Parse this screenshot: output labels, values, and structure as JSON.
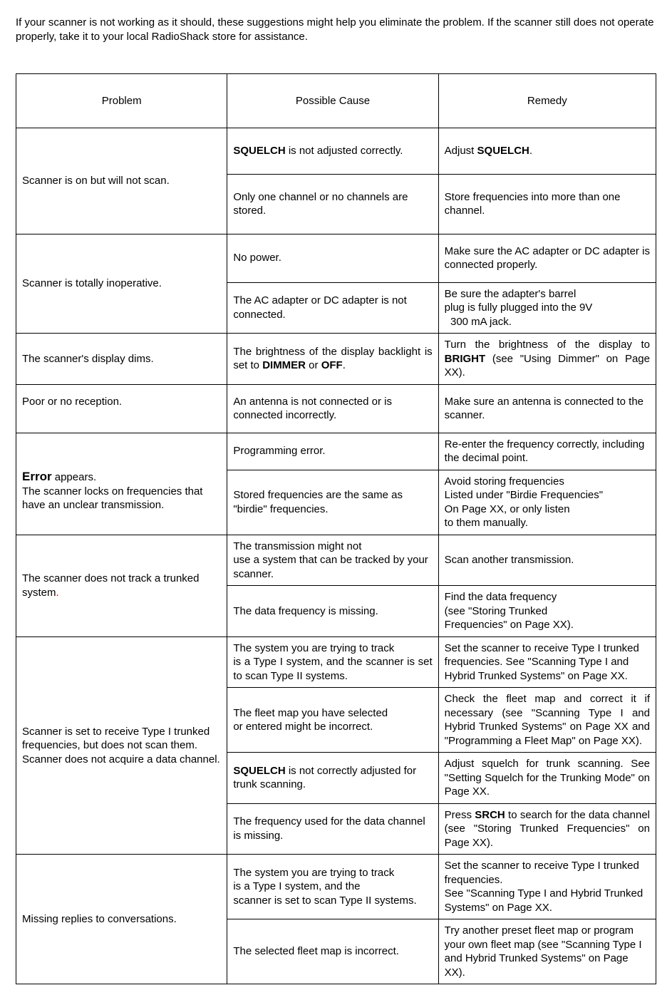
{
  "intro": "If your scanner is not working as it should, these suggestions might help you eliminate the problem. If the scanner still does not operate properly, take it to your local RadioShack store for assistance.",
  "headers": {
    "c1": "Problem",
    "c2": "Possible Cause",
    "c3": "Remedy"
  },
  "r1": {
    "problem": "Scanner is on but will not scan.",
    "a_cause_pre": "",
    "a_cause_b": "SQUELCH",
    "a_cause_post": " is not adjusted correctly.",
    "a_rem_pre": "Adjust ",
    "a_rem_b": "SQUELCH",
    "a_rem_post": ".",
    "b_cause": "Only one channel or no channels are stored.",
    "b_rem": "Store frequencies into more than one channel."
  },
  "r2": {
    "problem": "Scanner is totally inoperative.",
    "a_cause": "No power.",
    "a_rem": "Make sure the AC adapter or DC adapter is connected properly.",
    "b_cause": "The AC adapter or DC adapter is not connected.",
    "b_rem": "Be sure the adapter's barrel\nplug is fully plugged into the 9V\n  300 mA jack."
  },
  "r3": {
    "problem": "The scanner's display dims.",
    "cause_pre": "The brightness of the display backlight is set to ",
    "cause_b1": "DIMMER",
    "cause_mid": " or ",
    "cause_b2": "OFF",
    "cause_post": ".",
    "rem_pre": "Turn the brightness of the display to ",
    "rem_b": "BRIGHT",
    "rem_post": " (see \"Using Dimmer\" on Page XX)."
  },
  "r4": {
    "problem": "Poor or no reception.",
    "cause": "An antenna is not connected or is connected incorrectly.",
    "rem": "Make sure an antenna is connected to the scanner."
  },
  "r5": {
    "problem_b": "Error",
    "problem_post": " appears.\nThe scanner locks on frequencies that have an unclear transmission.",
    "a_cause": "Programming error.",
    "a_rem": "Re-enter the frequency correctly, including the decimal point.",
    "b_cause": "Stored frequencies are the same as \"birdie\" frequencies.",
    "b_rem": "Avoid storing frequencies\nListed under \"Birdie Frequencies\"\nOn Page XX, or only listen\nto them manually."
  },
  "r6": {
    "problem_pre": "The scanner does not track a trunked system",
    "problem_dot": ".",
    "a_cause": "The transmission might not\nuse a system that can be tracked by your scanner.",
    "a_rem": "Scan another transmission.",
    "b_cause": "The data frequency is missing.",
    "b_rem": "Find the data frequency\n(see \"Storing Trunked\nFrequencies\" on Page XX)."
  },
  "r7": {
    "problem": "Scanner is set to receive Type I trunked frequencies, but does not scan them.\nScanner does not acquire a data channel.",
    "a_cause": "The system you are trying to track\nis a Type I system, and the scanner is set to scan Type II systems.",
    "a_rem": "Set the scanner to receive Type I trunked frequencies. See \"Scanning Type I and Hybrid Trunked Systems\" on Page XX.",
    "b_cause": "The fleet map you have selected\nor entered might be incorrect.",
    "b_rem": "Check the fleet map and correct it if necessary (see \"Scanning Type I and Hybrid Trunked Systems\" on Page XX and \"Programming a Fleet Map\" on Page XX).",
    "c_cause_b": "SQUELCH",
    "c_cause_post": " is not correctly adjusted for trunk scanning.",
    "c_rem": "Adjust squelch for trunk scanning. See \"Setting Squelch for the Trunking Mode\" on Page XX.",
    "d_cause": "The frequency used for the data channel is missing.",
    "d_rem_pre": "Press ",
    "d_rem_b": "SRCH",
    "d_rem_post": " to search for the data channel (see \"Storing Trunked Frequencies\" on Page XX)."
  },
  "r8": {
    "problem": "Missing replies to conversations.",
    "a_cause": "The system you are trying to track\nis a Type I system, and the\nscanner is set to scan Type II systems.",
    "a_rem": "Set the scanner to receive Type I trunked frequencies.\nSee \"Scanning Type I and Hybrid Trunked Systems\" on Page XX.",
    "b_cause": "The selected fleet map is incorrect.",
    "b_rem": "Try another preset fleet map or program your own fleet map (see \"Scanning Type I and Hybrid Trunked Systems\" on Page XX)."
  }
}
